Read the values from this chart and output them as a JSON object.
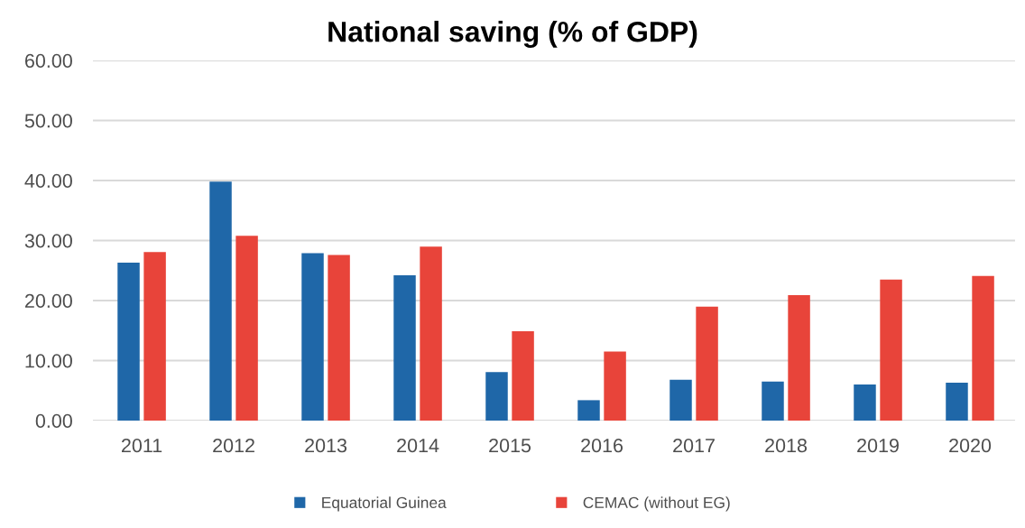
{
  "chart_data": {
    "type": "bar",
    "title": "National saving (% of GDP)",
    "categories": [
      "2011",
      "2012",
      "2013",
      "2014",
      "2015",
      "2016",
      "2017",
      "2018",
      "2019",
      "2020"
    ],
    "series": [
      {
        "name": "Equatorial Guinea",
        "color": "#1f67a8",
        "values": [
          26.3,
          39.8,
          27.9,
          24.2,
          8.1,
          3.4,
          6.8,
          6.5,
          6.0,
          6.3
        ]
      },
      {
        "name": "CEMAC (without EG)",
        "color": "#e8443a",
        "values": [
          28.1,
          30.8,
          27.6,
          29.0,
          14.9,
          11.5,
          19.0,
          20.9,
          23.5,
          24.1
        ]
      }
    ],
    "ylim": [
      0,
      60
    ],
    "yticks": [
      {
        "value": 0,
        "label": "0.00"
      },
      {
        "value": 10,
        "label": "10.00"
      },
      {
        "value": 20,
        "label": "20.00"
      },
      {
        "value": 30,
        "label": "30.00"
      },
      {
        "value": 40,
        "label": "40.00"
      },
      {
        "value": 50,
        "label": "50.00"
      },
      {
        "value": 60,
        "label": "60.00"
      }
    ],
    "grid": "y",
    "legend": "bottom"
  }
}
